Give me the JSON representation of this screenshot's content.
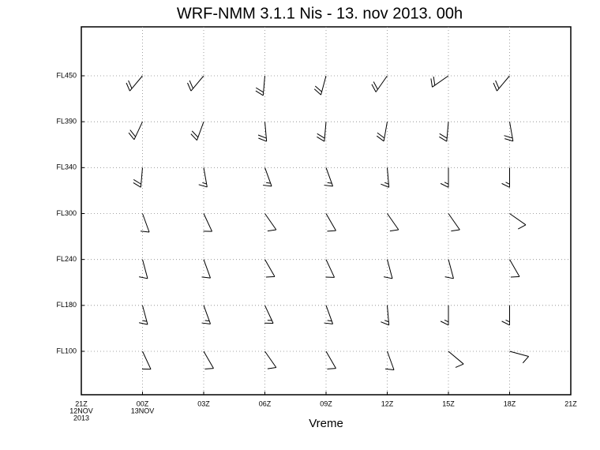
{
  "chart_data": {
    "type": "barbs",
    "title": "WRF-NMM 3.1.1 Nis - 13. nov 2013. 00h",
    "x_label": "Vreme",
    "categories": [
      [
        "21Z",
        "12NOV",
        "2013"
      ],
      [
        "00Z",
        "13NOV"
      ],
      [
        "03Z"
      ],
      [
        "06Z"
      ],
      [
        "09Z"
      ],
      [
        "12Z"
      ],
      [
        "15Z"
      ],
      [
        "18Z"
      ],
      [
        "21Z"
      ]
    ],
    "grid": true,
    "series": [
      {
        "name": "FL100",
        "values": [
          null,
          10,
          10,
          10,
          10,
          10,
          10,
          10,
          null
        ],
        "directions": [
          null,
          155,
          150,
          145,
          150,
          160,
          130,
          105,
          null
        ]
      },
      {
        "name": "FL180",
        "values": [
          null,
          15,
          15,
          15,
          15,
          15,
          15,
          15,
          null
        ],
        "directions": [
          null,
          165,
          160,
          155,
          160,
          175,
          180,
          180,
          null
        ]
      },
      {
        "name": "FL240",
        "values": [
          null,
          10,
          10,
          10,
          10,
          10,
          10,
          10,
          null
        ],
        "directions": [
          null,
          165,
          160,
          150,
          155,
          165,
          165,
          150,
          null
        ]
      },
      {
        "name": "FL300",
        "values": [
          null,
          10,
          10,
          10,
          10,
          10,
          10,
          10,
          null
        ],
        "directions": [
          null,
          160,
          155,
          145,
          150,
          145,
          145,
          125,
          null
        ]
      },
      {
        "name": "FL340",
        "values": [
          null,
          20,
          15,
          15,
          15,
          15,
          15,
          15,
          null
        ],
        "directions": [
          null,
          185,
          170,
          160,
          160,
          175,
          180,
          180,
          null
        ]
      },
      {
        "name": "FL390",
        "values": [
          null,
          20,
          20,
          20,
          20,
          20,
          20,
          20,
          null
        ],
        "directions": [
          null,
          205,
          200,
          175,
          185,
          190,
          185,
          170,
          null
        ]
      },
      {
        "name": "FL450",
        "values": [
          null,
          20,
          20,
          20,
          20,
          20,
          20,
          20,
          null
        ],
        "directions": [
          null,
          220,
          220,
          185,
          195,
          215,
          235,
          220,
          null
        ]
      }
    ]
  }
}
